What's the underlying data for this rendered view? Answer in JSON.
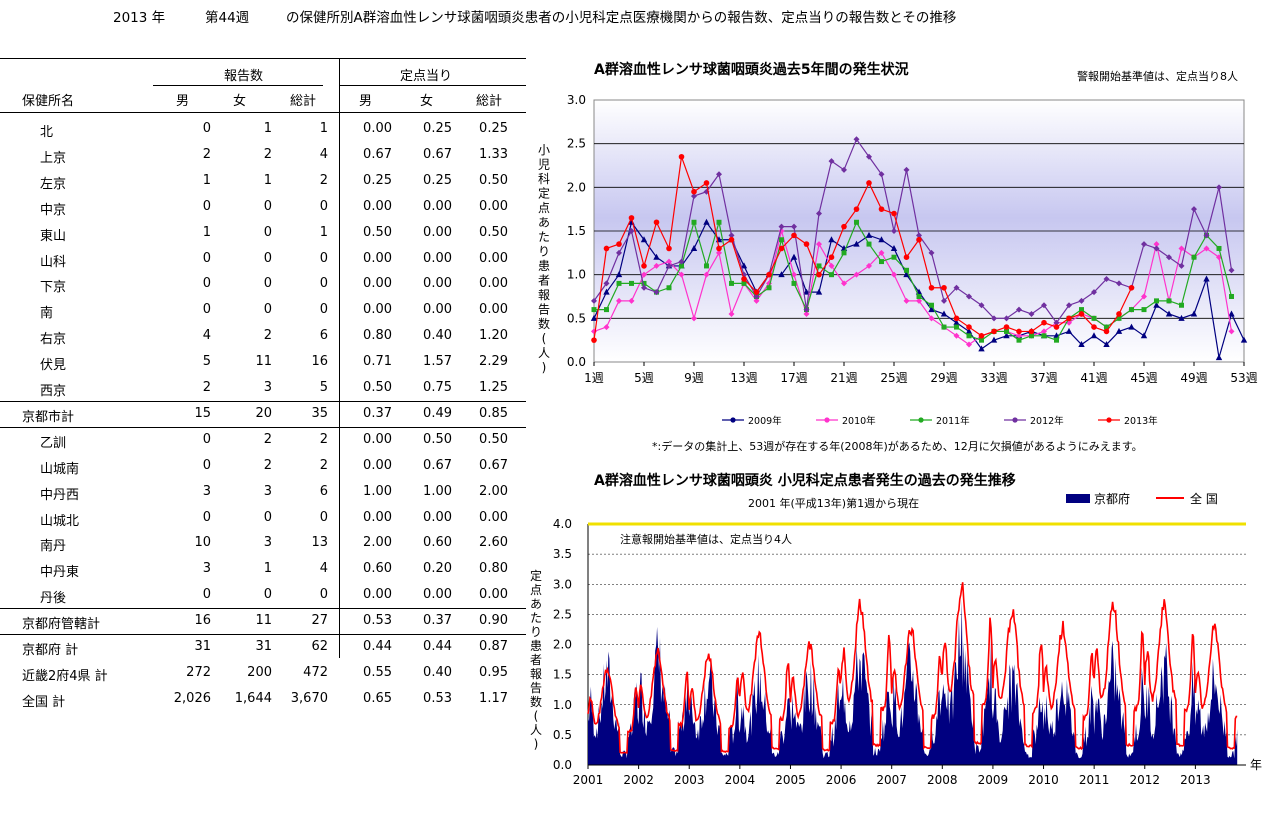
{
  "header": {
    "year": "2013 年",
    "week": "第44週",
    "title": "の保健所別A群溶血性レンサ球菌咽頭炎患者の小児科定点医療機関からの報告数、定点当りの報告数とその推移"
  },
  "table": {
    "col_groups": {
      "reports": "報告数",
      "per_sentinel": "定点当り"
    },
    "headers": [
      "保健所名",
      "男",
      "女",
      "総計",
      "男",
      "女",
      "総計"
    ],
    "rows": [
      [
        "北",
        "0",
        "1",
        "1",
        "0.00",
        "0.25",
        "0.25"
      ],
      [
        "上京",
        "2",
        "2",
        "4",
        "0.67",
        "0.67",
        "1.33"
      ],
      [
        "左京",
        "1",
        "1",
        "2",
        "0.25",
        "0.25",
        "0.50"
      ],
      [
        "中京",
        "0",
        "0",
        "0",
        "0.00",
        "0.00",
        "0.00"
      ],
      [
        "東山",
        "1",
        "0",
        "1",
        "0.50",
        "0.00",
        "0.50"
      ],
      [
        "山科",
        "0",
        "0",
        "0",
        "0.00",
        "0.00",
        "0.00"
      ],
      [
        "下京",
        "0",
        "0",
        "0",
        "0.00",
        "0.00",
        "0.00"
      ],
      [
        "南",
        "0",
        "0",
        "0",
        "0.00",
        "0.00",
        "0.00"
      ],
      [
        "右京",
        "4",
        "2",
        "6",
        "0.80",
        "0.40",
        "1.20"
      ],
      [
        "伏見",
        "5",
        "11",
        "16",
        "0.71",
        "1.57",
        "2.29"
      ],
      [
        "西京",
        "2",
        "3",
        "5",
        "0.50",
        "0.75",
        "1.25"
      ],
      [
        "京都市計",
        "15",
        "20",
        "35",
        "0.37",
        "0.49",
        "0.85"
      ],
      [
        "乙訓",
        "0",
        "2",
        "2",
        "0.00",
        "0.50",
        "0.50"
      ],
      [
        "山城南",
        "0",
        "2",
        "2",
        "0.00",
        "0.67",
        "0.67"
      ],
      [
        "中丹西",
        "3",
        "3",
        "6",
        "1.00",
        "1.00",
        "2.00"
      ],
      [
        "山城北",
        "0",
        "0",
        "0",
        "0.00",
        "0.00",
        "0.00"
      ],
      [
        "南丹",
        "10",
        "3",
        "13",
        "2.00",
        "0.60",
        "2.60"
      ],
      [
        "中丹東",
        "3",
        "1",
        "4",
        "0.60",
        "0.20",
        "0.80"
      ],
      [
        "丹後",
        "0",
        "0",
        "0",
        "0.00",
        "0.00",
        "0.00"
      ],
      [
        "京都府管轄計",
        "16",
        "11",
        "27",
        "0.53",
        "0.37",
        "0.90"
      ],
      [
        "京都府 計",
        "31",
        "31",
        "62",
        "0.44",
        "0.44",
        "0.87"
      ],
      [
        "近畿2府4県 計",
        "272",
        "200",
        "472",
        "0.55",
        "0.40",
        "0.95"
      ],
      [
        "全国 計",
        "2,026",
        "1,644",
        "3,670",
        "0.65",
        "0.53",
        "1.17"
      ]
    ]
  },
  "chart_data": [
    {
      "type": "line",
      "title": "A群溶血性レンサ球菌咽頭炎過去5年間の発生状況",
      "note_top": "警報開始基準値は、定点当り8人",
      "ylabel": "小児科定点あたり患者報告数(人)",
      "ylim": [
        0,
        3.0
      ],
      "yticks": [
        "0.0",
        "0.5",
        "1.0",
        "1.5",
        "2.0",
        "2.5",
        "3.0"
      ],
      "xticks": [
        "1週",
        "5週",
        "9週",
        "13週",
        "17週",
        "21週",
        "25週",
        "29週",
        "33週",
        "37週",
        "41週",
        "45週",
        "49週",
        "53週"
      ],
      "footnote": "*:データの集計上、53週が存在する年(2008年)があるため、12月に欠損値があるようにみえます。",
      "series": [
        {
          "name": "2009年",
          "color": "#000080",
          "marker": "triangle",
          "values": [
            0.5,
            0.8,
            1.0,
            1.6,
            1.4,
            1.2,
            1.1,
            1.1,
            1.3,
            1.6,
            1.4,
            1.4,
            1.1,
            0.8,
            1.0,
            1.0,
            1.2,
            0.8,
            0.8,
            1.4,
            1.3,
            1.35,
            1.45,
            1.4,
            1.3,
            1.0,
            0.8,
            0.6,
            0.55,
            0.45,
            0.35,
            0.15,
            0.25,
            0.3,
            0.3,
            0.35,
            0.3,
            0.3,
            0.35,
            0.2,
            0.3,
            0.2,
            0.35,
            0.4,
            0.3,
            0.65,
            0.55,
            0.5,
            0.55,
            0.95,
            0.05,
            0.55,
            0.25
          ]
        },
        {
          "name": "2010年",
          "color": "#ff33cc",
          "marker": "diamond",
          "values": [
            0.35,
            0.4,
            0.7,
            0.7,
            1.0,
            1.1,
            1.15,
            1.0,
            0.5,
            1.0,
            1.25,
            0.55,
            0.9,
            0.7,
            0.9,
            1.5,
            1.0,
            0.55,
            1.35,
            1.1,
            0.9,
            1.0,
            1.1,
            1.25,
            1.0,
            0.7,
            0.7,
            0.5,
            0.4,
            0.3,
            0.2,
            0.3,
            0.35,
            0.35,
            0.3,
            0.3,
            0.35,
            0.45,
            0.45,
            0.55,
            0.5,
            0.4,
            0.5,
            0.6,
            0.75,
            1.35,
            0.7,
            1.3,
            1.2,
            1.3,
            1.2,
            0.35
          ]
        },
        {
          "name": "2011年",
          "color": "#22aa22",
          "marker": "square",
          "values": [
            0.6,
            0.6,
            0.9,
            0.9,
            0.9,
            0.8,
            0.85,
            1.1,
            1.6,
            1.1,
            1.6,
            0.9,
            0.9,
            0.75,
            0.85,
            1.4,
            0.9,
            0.6,
            1.1,
            1.0,
            1.25,
            1.6,
            1.35,
            1.15,
            1.2,
            1.05,
            0.75,
            0.65,
            0.4,
            0.4,
            0.3,
            0.25,
            0.35,
            0.35,
            0.25,
            0.3,
            0.3,
            0.25,
            0.5,
            0.6,
            0.5,
            0.4,
            0.5,
            0.6,
            0.6,
            0.7,
            0.7,
            0.65,
            1.2,
            1.45,
            1.3,
            0.75
          ]
        },
        {
          "name": "2012年",
          "color": "#7030a0",
          "marker": "diamond",
          "values": [
            0.7,
            0.9,
            1.25,
            1.5,
            0.85,
            0.8,
            1.1,
            1.15,
            1.9,
            1.95,
            2.15,
            1.45,
            1.0,
            0.75,
            1.0,
            1.55,
            1.55,
            0.6,
            1.7,
            2.3,
            2.2,
            2.55,
            2.35,
            2.15,
            1.5,
            2.2,
            1.45,
            1.25,
            0.7,
            0.85,
            0.75,
            0.65,
            0.5,
            0.5,
            0.6,
            0.55,
            0.65,
            0.45,
            0.65,
            0.7,
            0.8,
            0.95,
            0.9,
            0.85,
            1.35,
            1.3,
            1.2,
            1.1,
            1.75,
            1.45,
            2.0,
            1.05
          ]
        },
        {
          "name": "2013年",
          "color": "#ff0000",
          "marker": "circle",
          "values": [
            0.25,
            1.3,
            1.35,
            1.65,
            1.1,
            1.6,
            1.3,
            2.35,
            1.95,
            2.05,
            1.3,
            1.4,
            0.95,
            0.8,
            1.0,
            1.3,
            1.45,
            1.35,
            1.0,
            1.2,
            1.55,
            1.75,
            2.05,
            1.75,
            1.7,
            1.2,
            1.4,
            0.85,
            0.85,
            0.5,
            0.4,
            0.3,
            0.35,
            0.4,
            0.35,
            0.35,
            0.45,
            0.4,
            0.5,
            0.55,
            0.4,
            0.35,
            0.55,
            0.85
          ]
        }
      ]
    },
    {
      "type": "area",
      "title": "A群溶血性レンサ球菌咽頭炎 小児科定点患者発生の過去の発生推移",
      "subtitle": "2001 年(平成13年)第1週から現在",
      "note": "注意報開始基準値は、定点当り4人",
      "ylabel": "定点あたり患者報告数(人)",
      "xunit": "年",
      "ylim": [
        0,
        4.0
      ],
      "yticks": [
        "0.0",
        "0.5",
        "1.0",
        "1.5",
        "2.0",
        "2.5",
        "3.0",
        "3.5",
        "4.0"
      ],
      "xticks": [
        "2001",
        "2002",
        "2003",
        "2004",
        "2005",
        "2006",
        "2007",
        "2008",
        "2009",
        "2010",
        "2011",
        "2012",
        "2013"
      ],
      "threshold": 4.0,
      "legend": [
        "京都府",
        "全 国"
      ],
      "series": [
        {
          "name": "京都府",
          "color": "#000080",
          "type": "area",
          "annual_peak": [
            2.0,
            2.4,
            1.9,
            1.9,
            1.9,
            2.4,
            2.2,
            2.9,
            1.9,
            1.9,
            2.1,
            2.2,
            1.9
          ]
        },
        {
          "name": "全 国",
          "color": "#ff0000",
          "type": "line",
          "annual_peak": [
            1.7,
            2.0,
            1.9,
            2.3,
            2.1,
            2.8,
            2.4,
            3.1,
            2.7,
            2.4,
            2.8,
            2.8,
            2.4
          ]
        }
      ]
    }
  ]
}
